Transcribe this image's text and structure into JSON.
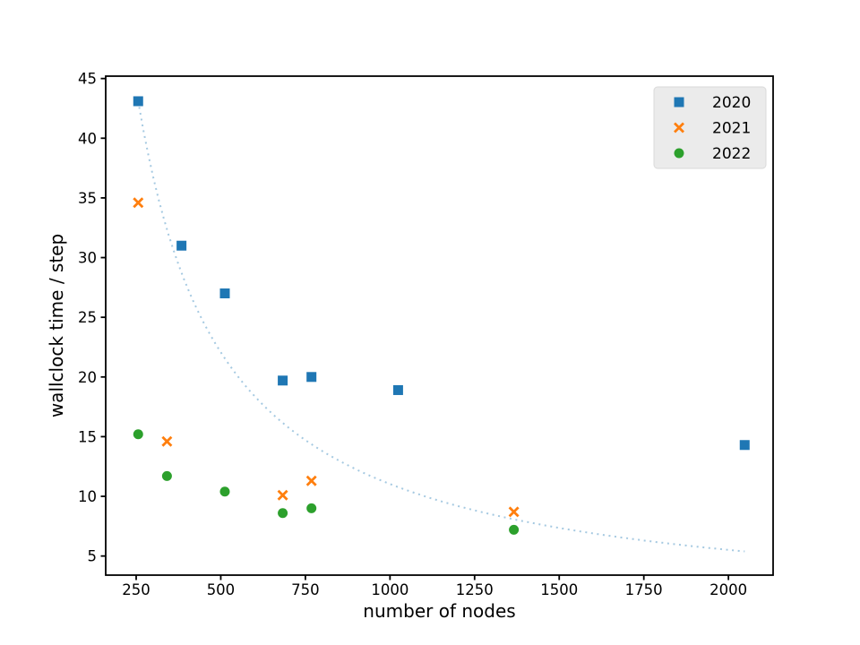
{
  "chart_data": {
    "type": "scatter",
    "title": "",
    "xlabel": "number of nodes",
    "ylabel": "wallclock time / step",
    "xlim": [
      160,
      2132
    ],
    "ylim": [
      3.4,
      45.2
    ],
    "x_ticks": [
      250,
      500,
      750,
      1000,
      1250,
      1500,
      1750,
      2000
    ],
    "y_ticks": [
      5,
      10,
      15,
      20,
      25,
      30,
      35,
      40,
      45
    ],
    "grid": false,
    "legend": {
      "position": "upper right",
      "entries": [
        "2020",
        "2021",
        "2022"
      ]
    },
    "series": [
      {
        "name": "2020",
        "marker": "square",
        "color": "#1f77b4",
        "points": [
          [
            256,
            43.1
          ],
          [
            384,
            31.0
          ],
          [
            512,
            27.0
          ],
          [
            683,
            19.7
          ],
          [
            768,
            20.0
          ],
          [
            1024,
            18.9
          ],
          [
            2048,
            14.3
          ]
        ]
      },
      {
        "name": "2021",
        "marker": "x",
        "color": "#ff7f0e",
        "points": [
          [
            256,
            34.6
          ],
          [
            341,
            14.6
          ],
          [
            683,
            10.1
          ],
          [
            768,
            11.3
          ],
          [
            1366,
            8.7
          ]
        ]
      },
      {
        "name": "2022",
        "marker": "circle",
        "color": "#2ca02c",
        "points": [
          [
            256,
            15.2
          ],
          [
            341,
            11.7
          ],
          [
            512,
            10.4
          ],
          [
            683,
            8.6
          ],
          [
            768,
            9.0
          ],
          [
            1366,
            7.2
          ]
        ]
      }
    ],
    "reference_curve": {
      "description": "ideal 1/n scaling curve through (256, 43.1)",
      "constant": 11034,
      "x_start": 256,
      "x_end": 2048,
      "style": "dotted",
      "color": "#a5c9e1"
    }
  },
  "colors": {
    "background": "#ffffff",
    "axis": "#000000",
    "legend_bg": "#ebebeb",
    "legend_border": "#dadada"
  }
}
